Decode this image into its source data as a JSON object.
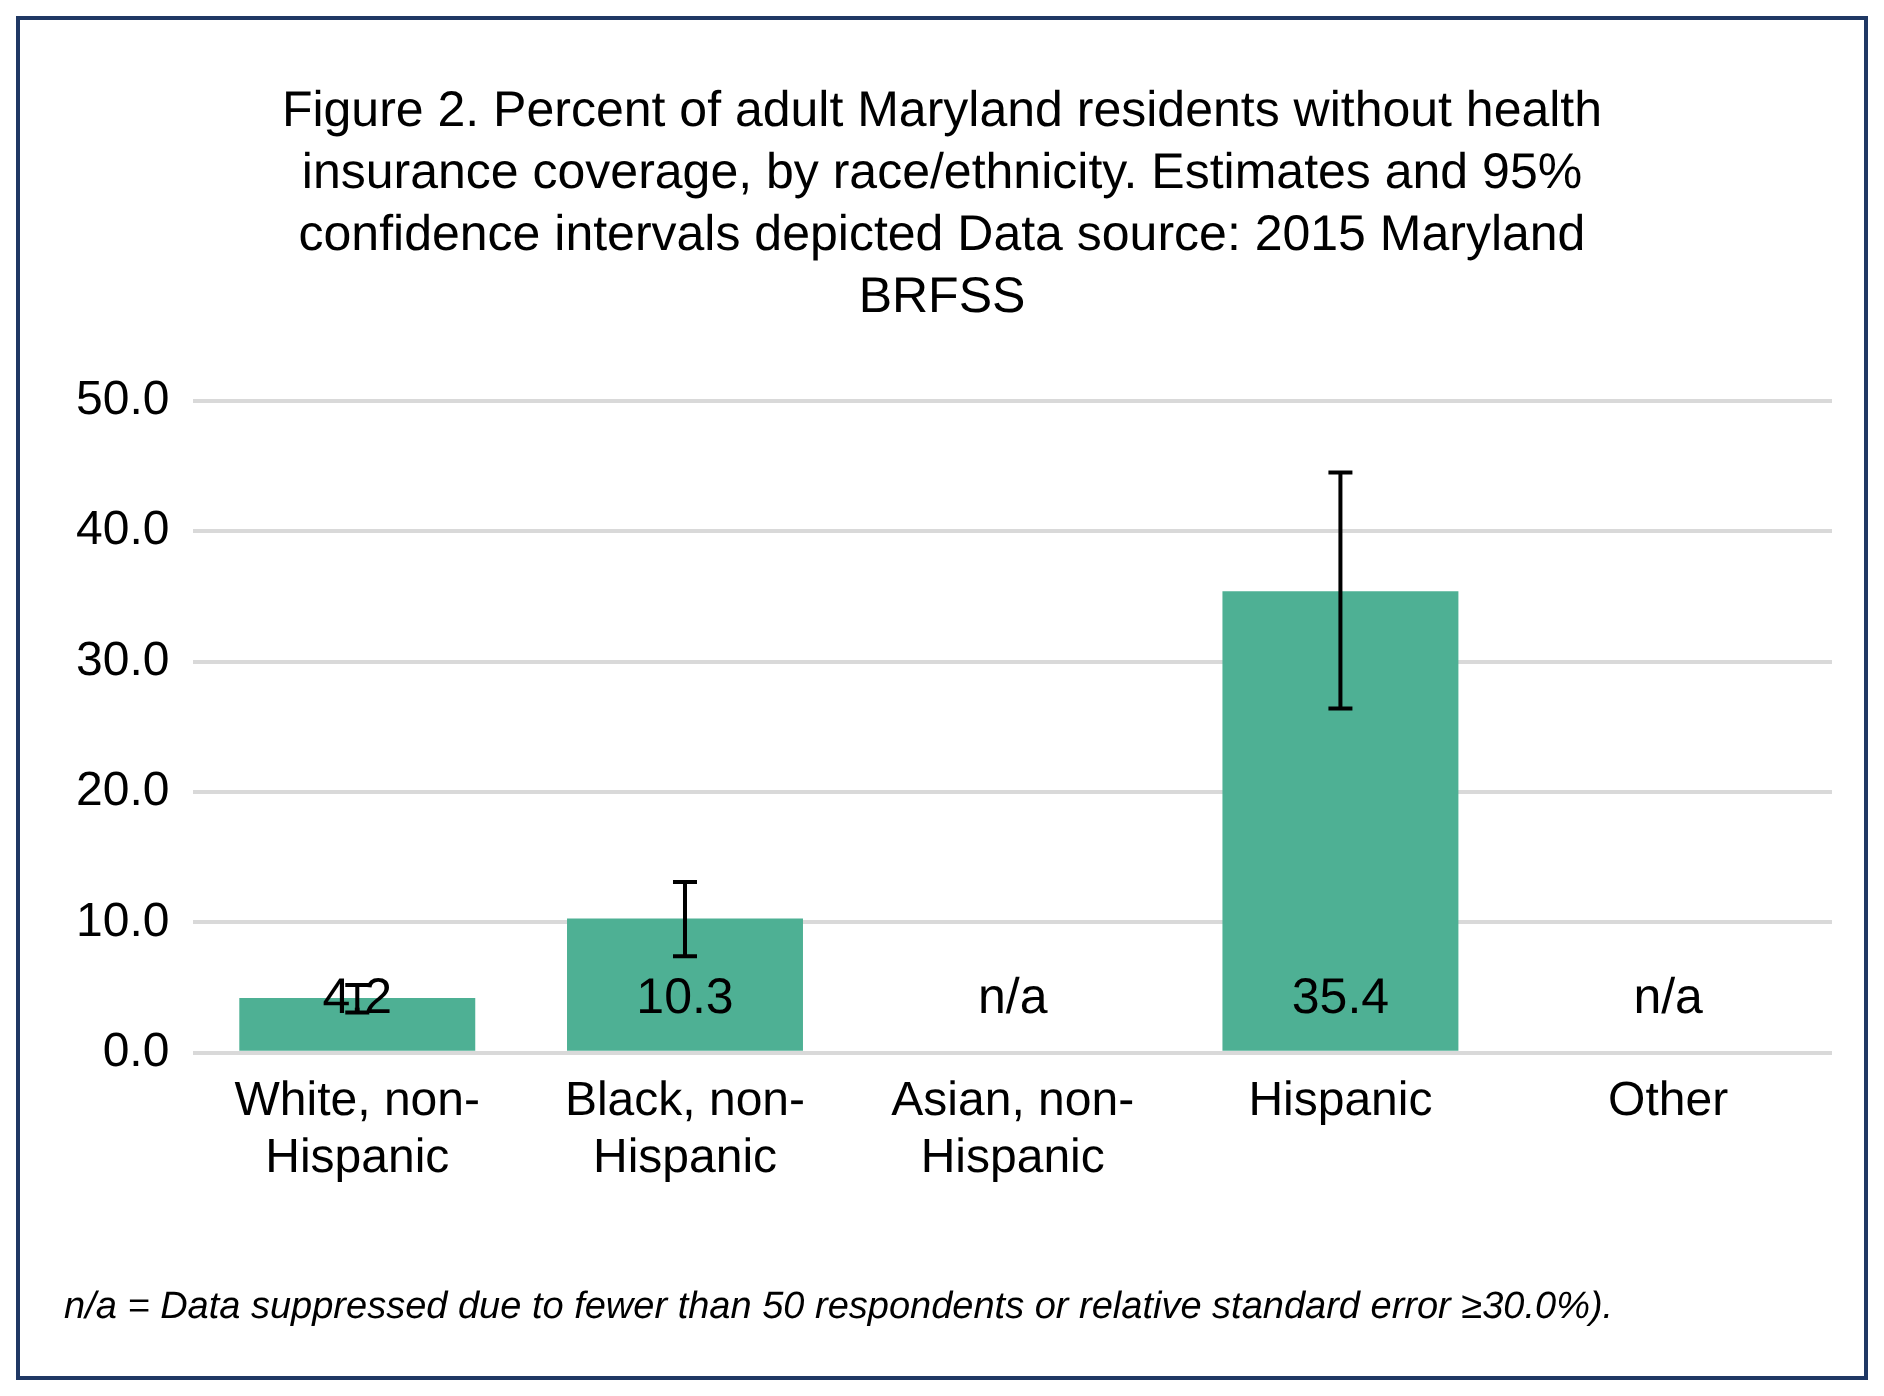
{
  "chart_data": {
    "type": "bar",
    "title": "Figure 2. Percent of adult Maryland residents without health insurance coverage, by race/ethnicity. Estimates and 95% confidence intervals depicted Data source: 2015 Maryland BRFSS",
    "categories": [
      "White, non-Hispanic",
      "Black, non-Hispanic",
      "Asian, non-Hispanic",
      "Hispanic",
      "Other"
    ],
    "values": [
      4.2,
      10.3,
      null,
      35.4,
      null
    ],
    "value_labels": [
      "4.2",
      "10.3",
      "n/a",
      "35.4",
      "n/a"
    ],
    "errors": [
      [
        3.1,
        5.2
      ],
      [
        7.4,
        13.1
      ],
      null,
      [
        26.4,
        44.5
      ],
      null
    ],
    "color": "#4eb094",
    "ylim": [
      0,
      50
    ],
    "yticks": [
      {
        "value": 0,
        "label": "0.0"
      },
      {
        "value": 10,
        "label": "10.0"
      },
      {
        "value": 20,
        "label": "20.0"
      },
      {
        "value": 30,
        "label": "30.0"
      },
      {
        "value": 40,
        "label": "40.0"
      },
      {
        "value": 50,
        "label": "50.0"
      }
    ],
    "grid": "y",
    "legend": false,
    "annotations": [
      "n/a = Data suppressed due to fewer than 50 respondents or relative standard error ≥30.0%)."
    ]
  }
}
